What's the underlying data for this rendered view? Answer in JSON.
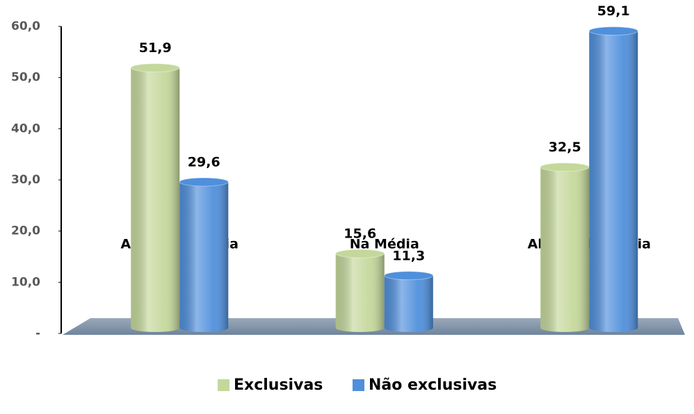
{
  "chart_data": {
    "type": "bar",
    "categories": [
      "Acima da Média",
      "Na Média",
      "Abaixo da Média"
    ],
    "series": [
      {
        "name": "Exclusivas",
        "color": "#c4d89b",
        "values": [
          51.9,
          15.6,
          32.5
        ],
        "value_labels": [
          "51,9",
          "15,6",
          "32,5"
        ]
      },
      {
        "name": "Não exclusivas",
        "color": "#4f8fdc",
        "values": [
          29.6,
          11.3,
          59.1
        ],
        "value_labels": [
          "29,6",
          "11,3",
          "59,1"
        ]
      }
    ],
    "ylim": [
      0,
      60
    ],
    "yticks": [
      {
        "value": 0,
        "label": "-"
      },
      {
        "value": 10,
        "label": "10,0"
      },
      {
        "value": 20,
        "label": "20,0"
      },
      {
        "value": 30,
        "label": "30,0"
      },
      {
        "value": 40,
        "label": "40,0"
      },
      {
        "value": 50,
        "label": "50,0"
      },
      {
        "value": 60,
        "label": "60,0"
      }
    ],
    "grid": false,
    "legend": "bottom"
  }
}
